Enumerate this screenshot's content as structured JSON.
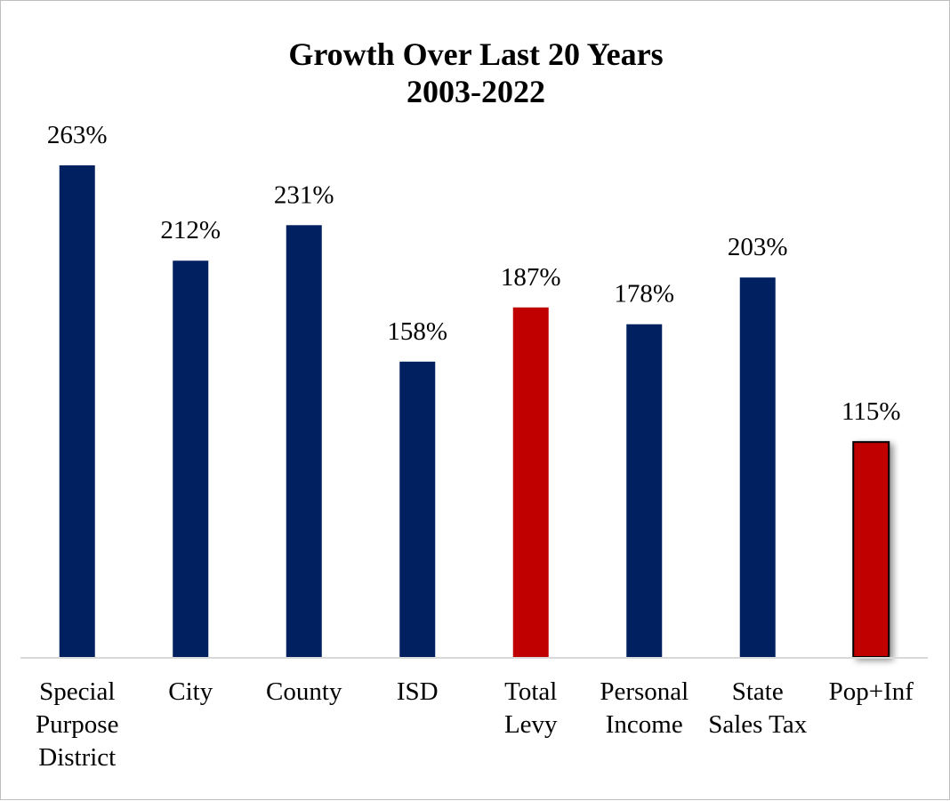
{
  "chart_data": {
    "type": "bar",
    "title": [
      "Growth Over Last 20 Years",
      "2003-2022"
    ],
    "categories": [
      [
        "Special",
        "Purpose",
        "District"
      ],
      [
        "City"
      ],
      [
        "County"
      ],
      [
        "ISD"
      ],
      [
        "Total",
        "Levy"
      ],
      [
        "Personal",
        "Income"
      ],
      [
        "State",
        "Sales Tax"
      ],
      [
        "Pop+Inf"
      ]
    ],
    "values": [
      263,
      212,
      231,
      158,
      187,
      178,
      203,
      115
    ],
    "value_labels": [
      "263%",
      "212%",
      "231%",
      "158%",
      "187%",
      "178%",
      "203%",
      "115%"
    ],
    "bar_colors": [
      "#002060",
      "#002060",
      "#002060",
      "#002060",
      "#c00000",
      "#002060",
      "#002060",
      "#c00000"
    ],
    "outlined_bars": [
      false,
      false,
      false,
      false,
      false,
      false,
      false,
      true
    ],
    "ylim": [
      0,
      263
    ],
    "xlabel": "",
    "ylabel": "",
    "grid": false,
    "legend": "none"
  }
}
